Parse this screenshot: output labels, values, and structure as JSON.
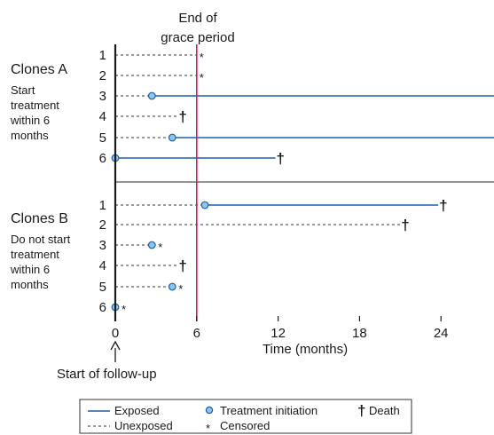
{
  "grace_period": {
    "label_line1": "End of",
    "label_line2": "grace period",
    "month": 6,
    "color": "#e0145a"
  },
  "groups": [
    {
      "title": "Clones A",
      "desc_lines": [
        "Start",
        "treatment",
        "within 6",
        "months"
      ]
    },
    {
      "title": "Clones B",
      "desc_lines": [
        "Do not start",
        "treatment",
        "within 6",
        "months"
      ]
    }
  ],
  "x_axis": {
    "label": "Time (months)",
    "ticks": [
      0,
      6,
      12,
      18,
      24
    ],
    "range": [
      0,
      28.5
    ]
  },
  "start_label": "Start of follow-up",
  "colors": {
    "exposed": "#1f5fa8",
    "marker_fill": "#8ec6e8",
    "dashed": "#333333",
    "divider": "#555555"
  },
  "chart_data": {
    "type": "timeline",
    "clones": [
      {
        "group": "Clones A",
        "rows": [
          {
            "id": "1",
            "unexposed_end": 6,
            "event": "censored",
            "event_at": 6
          },
          {
            "id": "2",
            "unexposed_end": 6,
            "event": "censored",
            "event_at": 6
          },
          {
            "id": "3",
            "unexposed_end": 2.7,
            "initiation": 2.7,
            "exposed_end": 28.5,
            "event": "none"
          },
          {
            "id": "4",
            "unexposed_end": 4.6,
            "event": "death",
            "event_at": 4.6
          },
          {
            "id": "5",
            "unexposed_end": 4.2,
            "initiation": 4.2,
            "exposed_end": 28.5,
            "event": "none"
          },
          {
            "id": "6",
            "unexposed_end": 0,
            "initiation": 0,
            "exposed_end": 11.8,
            "event": "death",
            "event_at": 11.8
          }
        ]
      },
      {
        "group": "Clones B",
        "rows": [
          {
            "id": "1",
            "unexposed_end": 6.6,
            "initiation": 6.6,
            "exposed_end": 23.8,
            "event": "death",
            "event_at": 23.8
          },
          {
            "id": "2",
            "unexposed_end": 21.0,
            "event": "death",
            "event_at": 21.0
          },
          {
            "id": "3",
            "unexposed_end": 2.7,
            "initiation": 2.7,
            "event": "censored",
            "event_at": 2.7
          },
          {
            "id": "4",
            "unexposed_end": 4.6,
            "event": "death",
            "event_at": 4.6
          },
          {
            "id": "5",
            "unexposed_end": 4.2,
            "initiation": 4.2,
            "event": "censored",
            "event_at": 4.2
          },
          {
            "id": "6",
            "unexposed_end": 0,
            "initiation": 0,
            "event": "censored",
            "event_at": 0
          }
        ]
      }
    ]
  },
  "legend": {
    "exposed": "Exposed",
    "unexposed": "Unexposed",
    "initiation": "Treatment initiation",
    "censored": "Censored",
    "death": "Death",
    "dagger": "†",
    "star": "*"
  }
}
